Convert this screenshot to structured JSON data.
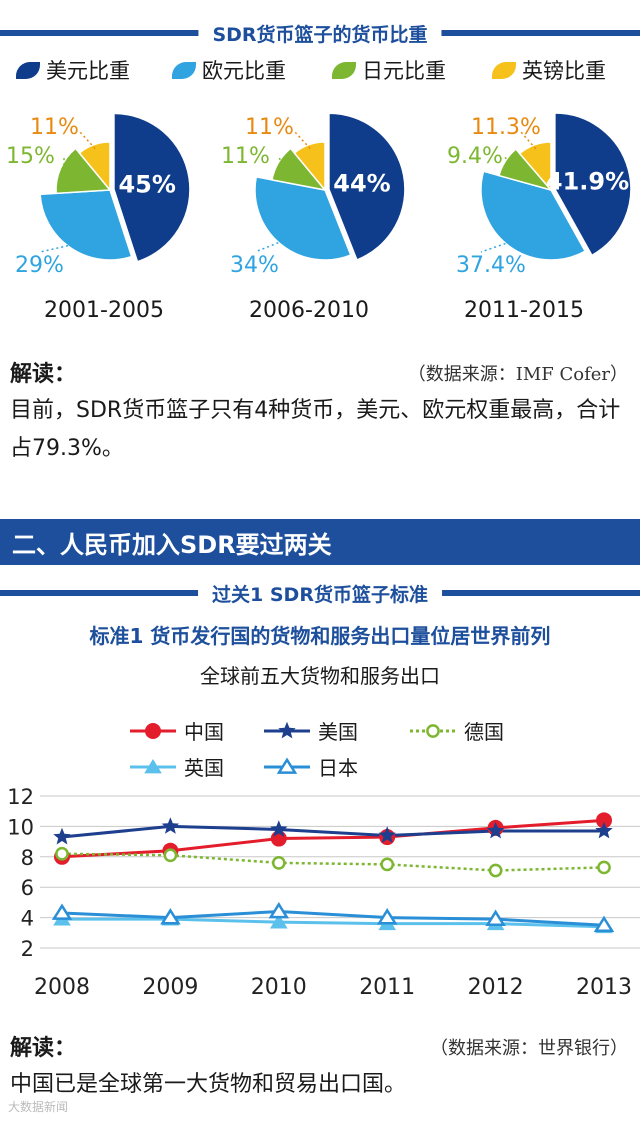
{
  "top_banner": "SDR货币篮子的货币比重",
  "legend": [
    {
      "label": "美元比重",
      "color": "#0f3d8c"
    },
    {
      "label": "欧元比重",
      "color": "#2fa4e0"
    },
    {
      "label": "日元比重",
      "color": "#7db731"
    },
    {
      "label": "英镑比重",
      "color": "#f6c11a"
    }
  ],
  "pie_colors": {
    "usd": "#0f3d8c",
    "eur": "#2fa4e0",
    "jpy": "#7db731",
    "gbp": "#f6c11a"
  },
  "label_colors": {
    "usd": "#ffffff",
    "eur": "#2fa4e0",
    "jpy": "#7db731",
    "gbp": "#e88a12"
  },
  "chart_data": [
    {
      "type": "pie",
      "title": "SDR货币篮子的货币比重",
      "series_names": [
        "美元比重",
        "欧元比重",
        "日元比重",
        "英镑比重"
      ],
      "pies": [
        {
          "period": "2001-2005",
          "values": [
            45,
            29,
            15,
            11
          ],
          "labels": [
            "45%",
            "29%",
            "15%",
            "11%"
          ]
        },
        {
          "period": "2006-2010",
          "values": [
            44,
            34,
            11,
            11
          ],
          "labels": [
            "44%",
            "34%",
            "11%",
            "11%"
          ]
        },
        {
          "period": "2011-2015",
          "values": [
            41.9,
            37.4,
            9.4,
            11.3
          ],
          "labels": [
            "41.9%",
            "37.4%",
            "9.4%",
            "11.3%"
          ]
        }
      ]
    },
    {
      "type": "line",
      "title": "全球前五大货物和服务出口",
      "x": [
        "2008",
        "2009",
        "2010",
        "2011",
        "2012",
        "2013"
      ],
      "ylim": [
        2,
        12
      ],
      "yticks": [
        "2",
        "4",
        "6",
        "8",
        "10",
        "12"
      ],
      "grid": true,
      "legend_position": "top",
      "series": [
        {
          "name": "中国",
          "color": "#e31d2b",
          "marker": "circle",
          "dash": false,
          "values": [
            8.0,
            8.4,
            9.2,
            9.3,
            9.9,
            10.4
          ]
        },
        {
          "name": "美国",
          "color": "#1d3f8e",
          "marker": "star",
          "dash": false,
          "values": [
            9.3,
            10.0,
            9.8,
            9.4,
            9.7,
            9.7
          ]
        },
        {
          "name": "德国",
          "color": "#7db731",
          "marker": "open-circle",
          "dash": true,
          "values": [
            8.2,
            8.1,
            7.6,
            7.5,
            7.1,
            7.3
          ]
        },
        {
          "name": "英国",
          "color": "#5bc0eb",
          "marker": "triangle",
          "dash": false,
          "values": [
            3.9,
            3.9,
            3.7,
            3.6,
            3.6,
            3.4
          ]
        },
        {
          "name": "日本",
          "color": "#2a8fd6",
          "marker": "open-triangle",
          "dash": false,
          "values": [
            4.3,
            4.0,
            4.4,
            4.0,
            3.9,
            3.5
          ]
        }
      ]
    }
  ],
  "interpret1": {
    "heading": "解读：",
    "source": "（数据来源：IMF Cofer）",
    "text": "目前，SDR货币篮子只有4种货币，美元、欧元权重最高，合计占79.3%。"
  },
  "section_title": "二、人民币加入SDR要过两关",
  "sub_banner": "过关1 SDR货币篮子标准",
  "standard_title": "标准1 货币发行国的货物和服务出口量位居世界前列",
  "line_chart_title": "全球前五大货物和服务出口",
  "interpret2": {
    "heading": "解读：",
    "source": "（数据来源：世界银行）",
    "text": "中国已是全球第一大货物和贸易出口国。"
  },
  "watermark": "大数据新闻"
}
